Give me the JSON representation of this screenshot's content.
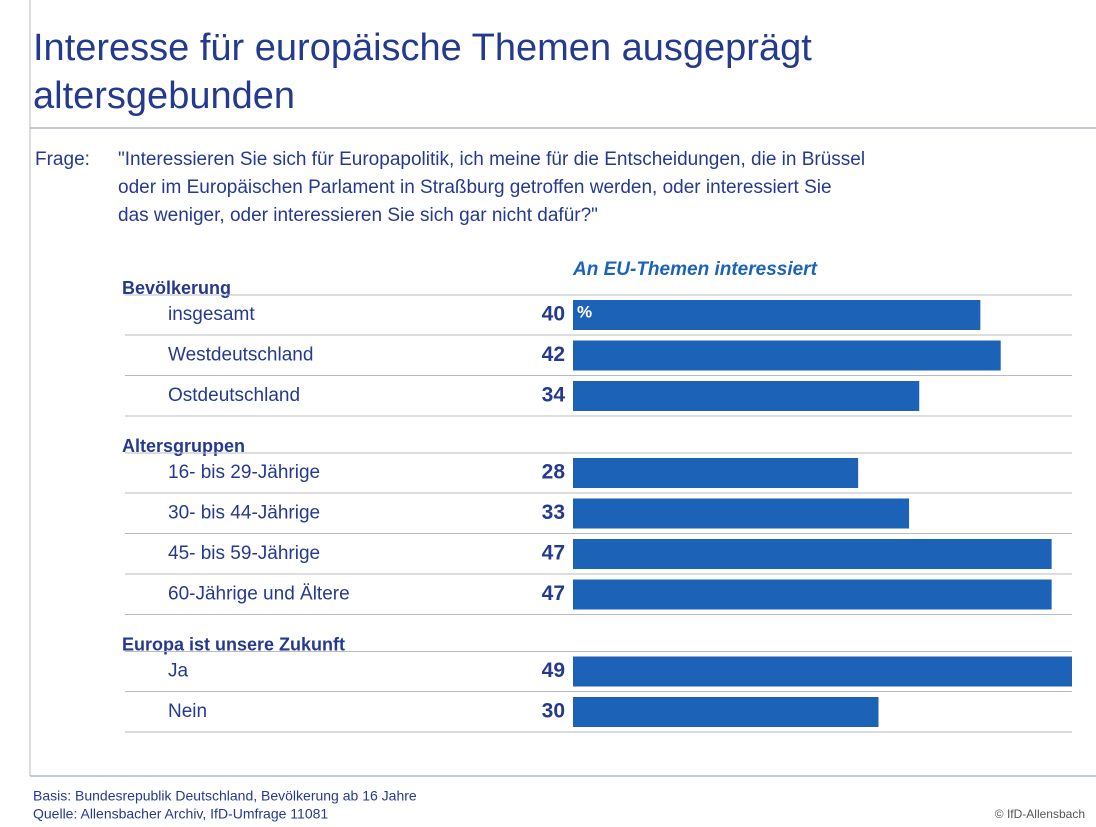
{
  "chart_data": {
    "type": "bar",
    "title": [
      "Interesse für europäische Themen ausgeprägt",
      "altersgebunden"
    ],
    "question_label": "Frage:",
    "question": [
      "\"Interessieren Sie sich für Europapolitik, ich meine für die Entscheidungen, die in Brüssel",
      "oder im Europäischen Parlament in Straßburg getroffen werden, oder interessiert Sie",
      "das weniger, oder interessieren Sie sich gar nicht dafür?\""
    ],
    "series_name": "An EU-Themen interessiert",
    "unit_label": "%",
    "color": "#1c63b7",
    "groups": [
      {
        "name": "Bevölkerung",
        "categories": [
          "insgesamt",
          "Westdeutschland",
          "Ostdeutschland"
        ],
        "values": [
          40,
          42,
          34
        ]
      },
      {
        "name": "Altersgruppen",
        "categories": [
          "16- bis 29-Jährige",
          "30- bis 44-Jährige",
          "45- bis 59-Jährige",
          "60-Jährige und Ältere"
        ],
        "values": [
          28,
          33,
          47,
          47
        ]
      },
      {
        "name": "Europa ist unsere Zukunft",
        "categories": [
          "Ja",
          "Nein"
        ],
        "values": [
          49,
          30
        ]
      }
    ],
    "footer": [
      "Basis: Bundesrepublik Deutschland, Bevölkerung ab 16 Jahre",
      "Quelle: Allensbacher Archiv, IfD-Umfrage 11081"
    ],
    "copyright": "© IfD-Allensbach"
  }
}
